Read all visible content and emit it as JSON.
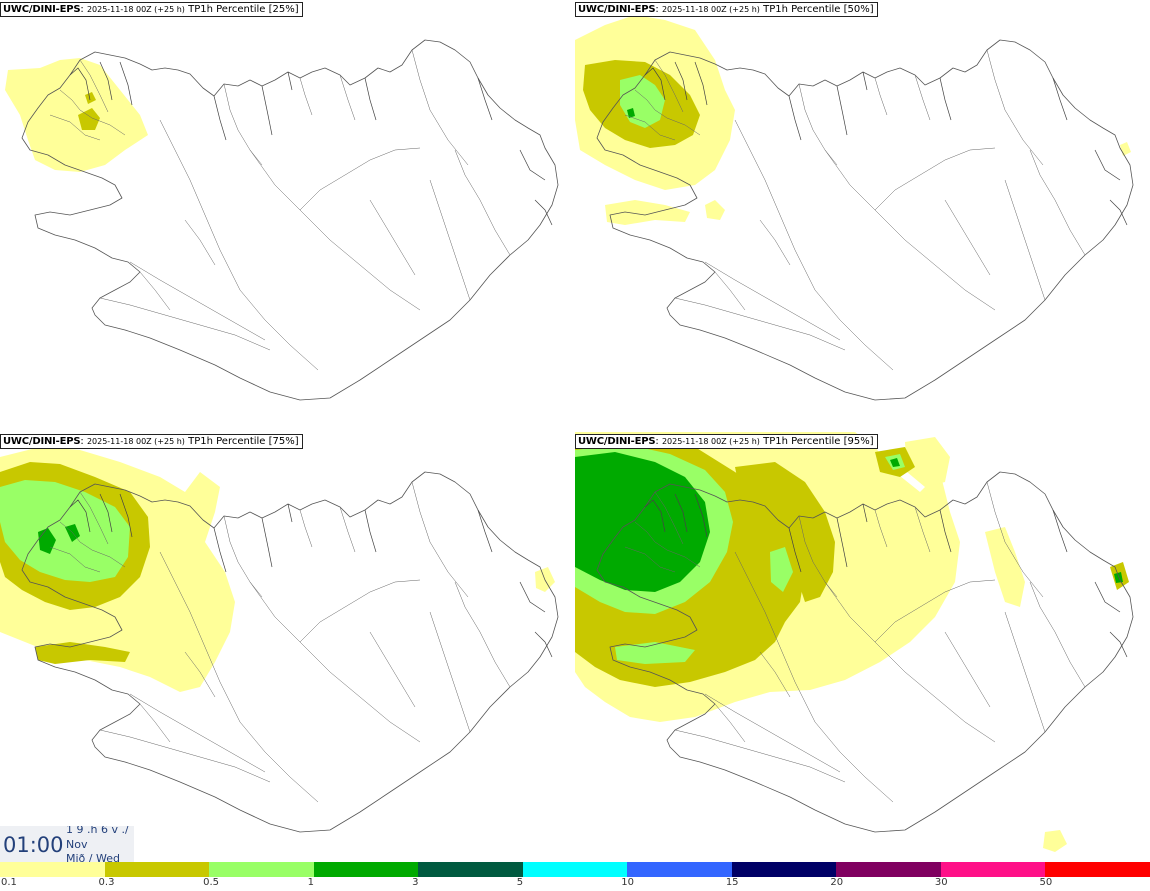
{
  "panels": [
    {
      "model": "UWC/DINI-EPS",
      "sep": ":",
      "date": "2025-11-18 00Z (+25 h)",
      "param": "TP1h Percentile [25%]"
    },
    {
      "model": "UWC/DINI-EPS",
      "sep": ":",
      "date": "2025-11-18 00Z (+25 h)",
      "param": "TP1h Percentile [50%]"
    },
    {
      "model": "UWC/DINI-EPS",
      "sep": ":",
      "date": "2025-11-18 00Z (+25 h)",
      "param": "TP1h Percentile [75%]"
    },
    {
      "model": "UWC/DINI-EPS",
      "sep": ":",
      "date": "2025-11-18 00Z (+25 h)",
      "param": "TP1h Percentile [95%]"
    }
  ],
  "valid_time": {
    "time": "01:00",
    "line1": "1 9 .h 6 v ./",
    "line2": "Nov",
    "line3": "Mið / Wed"
  },
  "legend": {
    "ticks": [
      "0.1",
      "0.3",
      "0.5",
      "1",
      "3",
      "5",
      "10",
      "15",
      "20",
      "30",
      "50"
    ],
    "colors": [
      "#ffff99",
      "#c8c800",
      "#99ff66",
      "#00aa00",
      "#005a40",
      "#00ffff",
      "#3366ff",
      "#000066",
      "#800060",
      "#ff1088",
      "#ff0000"
    ]
  },
  "field_colors": {
    "light": "#ffff99",
    "olive": "#c8c800",
    "lightgreen": "#99ff66",
    "green": "#00aa00"
  }
}
